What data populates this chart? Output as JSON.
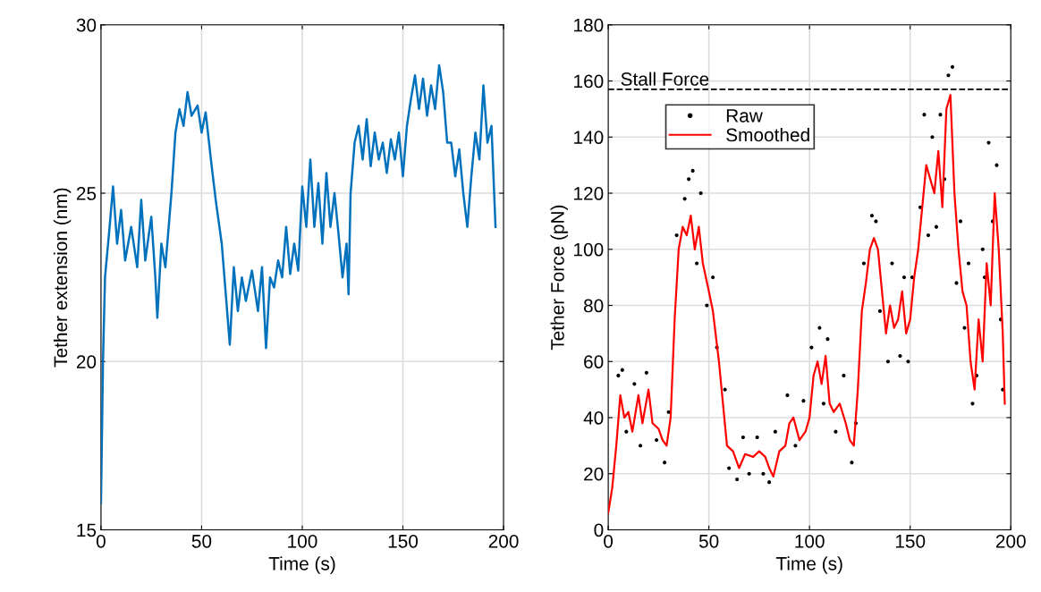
{
  "chart_data": [
    {
      "type": "line",
      "xlabel": "Time (s)",
      "ylabel": "Tether extension (nm)",
      "xlim": [
        0,
        200
      ],
      "ylim": [
        15,
        30
      ],
      "xticks": [
        0,
        50,
        100,
        150,
        200
      ],
      "yticks": [
        15,
        20,
        25,
        30
      ],
      "grid": true,
      "legend": false,
      "series": [
        {
          "color": "#0072bd",
          "x": [
            0,
            1,
            2,
            4,
            6,
            8,
            10,
            12,
            15,
            18,
            20,
            22,
            25,
            27,
            28,
            30,
            32,
            35,
            37,
            39,
            41,
            43,
            45,
            48,
            50,
            52,
            55,
            57,
            60,
            62,
            64,
            66,
            68,
            70,
            72,
            75,
            78,
            80,
            82,
            84,
            86,
            88,
            90,
            92,
            94,
            96,
            98,
            100,
            102,
            104,
            106,
            108,
            110,
            112,
            114,
            116,
            118,
            120,
            122,
            123,
            124,
            126,
            128,
            130,
            132,
            134,
            136,
            138,
            140,
            142,
            144,
            146,
            148,
            150,
            152,
            154,
            156,
            158,
            160,
            162,
            164,
            166,
            168,
            170,
            172,
            174,
            176,
            178,
            180,
            182,
            184,
            186,
            188,
            190,
            192,
            194,
            196
          ],
          "values": [
            15.8,
            20,
            22.5,
            23.8,
            25.2,
            23.5,
            24.5,
            23,
            24,
            22.8,
            24.8,
            23,
            24.3,
            22.5,
            21.3,
            23.5,
            22.8,
            25,
            26.8,
            27.5,
            27,
            28,
            27.3,
            27.6,
            26.8,
            27.4,
            25.8,
            24.8,
            23.5,
            22,
            20.5,
            22.8,
            21.5,
            22.5,
            21.8,
            22.7,
            21.5,
            22.8,
            20.4,
            22.5,
            22.2,
            23,
            22.5,
            24,
            22.6,
            23.5,
            22.7,
            25.2,
            24,
            26,
            24,
            25.3,
            23.5,
            25.6,
            24,
            25,
            23.8,
            22.5,
            23.5,
            22,
            25,
            26.5,
            27,
            26,
            27.2,
            25.8,
            26.8,
            26,
            26.5,
            25.6,
            26.6,
            26,
            26.8,
            25.5,
            27,
            27.8,
            28.5,
            27.5,
            28.4,
            27.3,
            28.2,
            27.5,
            28.8,
            28,
            26.5,
            26.5,
            25.5,
            26.3,
            25,
            24,
            25.5,
            26.8,
            26,
            28.2,
            26.5,
            27,
            24
          ]
        }
      ]
    },
    {
      "type": "line",
      "xlabel": "Time (s)",
      "ylabel": "Tether Force (pN)",
      "xlim": [
        0,
        200
      ],
      "ylim": [
        0,
        180
      ],
      "xticks": [
        0,
        50,
        100,
        150,
        200
      ],
      "yticks": [
        0,
        20,
        40,
        60,
        80,
        100,
        120,
        140,
        160,
        180
      ],
      "grid": true,
      "legend": "top left",
      "ref_lines": [
        {
          "axis": "y",
          "value": 157,
          "label": "Stall Force",
          "color": "#000000",
          "line_style": "dashed"
        }
      ],
      "series": [
        {
          "name": "Raw",
          "type": "scatter",
          "marker": "circle",
          "color": "#000000",
          "x": [
            5,
            7,
            9,
            13,
            16,
            19,
            24,
            28,
            30,
            34,
            38,
            40,
            42,
            44,
            46,
            49,
            52,
            54,
            58,
            60,
            64,
            67,
            70,
            74,
            77,
            80,
            83,
            89,
            93,
            97,
            101,
            105,
            107,
            109,
            113,
            117,
            121,
            123,
            127,
            131,
            133,
            135,
            139,
            141,
            145,
            147,
            149,
            151,
            155,
            157,
            159,
            161,
            163,
            165,
            167,
            169,
            171,
            173,
            175,
            177,
            179,
            181,
            183,
            186,
            187,
            189,
            191,
            193,
            195,
            196
          ],
          "values": [
            55,
            57,
            35,
            52,
            30,
            56,
            32,
            24,
            42,
            105,
            118,
            125,
            128,
            95,
            120,
            80,
            90,
            65,
            50,
            22,
            18,
            33,
            20,
            33,
            20,
            17,
            35,
            48,
            30,
            46,
            65,
            72,
            45,
            68,
            35,
            55,
            24,
            38,
            95,
            112,
            110,
            78,
            60,
            95,
            62,
            90,
            60,
            90,
            115,
            148,
            105,
            140,
            108,
            148,
            125,
            162,
            165,
            88,
            110,
            72,
            95,
            45,
            55,
            100,
            90,
            138,
            110,
            130,
            75,
            50
          ]
        },
        {
          "name": "Smoothed",
          "type": "line",
          "color": "#ff0000",
          "x": [
            0,
            2,
            4,
            6,
            8,
            10,
            12,
            15,
            17,
            20,
            22,
            25,
            27,
            29,
            31,
            33,
            35,
            37,
            39,
            41,
            43,
            45,
            47,
            50,
            52,
            55,
            57,
            59,
            62,
            65,
            68,
            72,
            75,
            78,
            80,
            82,
            85,
            88,
            90,
            92,
            95,
            98,
            100,
            102,
            104,
            106,
            108,
            110,
            112,
            115,
            118,
            120,
            122,
            124,
            126,
            128,
            130,
            132,
            134,
            136,
            138,
            140,
            142,
            144,
            146,
            148,
            150,
            152,
            154,
            156,
            158,
            160,
            162,
            164,
            166,
            168,
            170,
            172,
            174,
            176,
            178,
            180,
            182,
            184,
            186,
            188,
            190,
            192,
            194,
            196,
            197
          ],
          "values": [
            6,
            15,
            30,
            48,
            40,
            42,
            35,
            48,
            38,
            50,
            38,
            36,
            32,
            30,
            40,
            75,
            100,
            108,
            105,
            112,
            100,
            108,
            95,
            85,
            78,
            60,
            45,
            30,
            28,
            22,
            27,
            26,
            28,
            26,
            22,
            19,
            28,
            30,
            38,
            40,
            32,
            35,
            40,
            55,
            60,
            52,
            62,
            45,
            42,
            45,
            38,
            32,
            30,
            50,
            78,
            88,
            100,
            104,
            100,
            85,
            70,
            80,
            72,
            75,
            85,
            70,
            75,
            90,
            100,
            115,
            130,
            125,
            120,
            135,
            115,
            150,
            155,
            120,
            100,
            85,
            80,
            60,
            50,
            75,
            60,
            95,
            80,
            120,
            100,
            70,
            45
          ]
        }
      ]
    }
  ]
}
